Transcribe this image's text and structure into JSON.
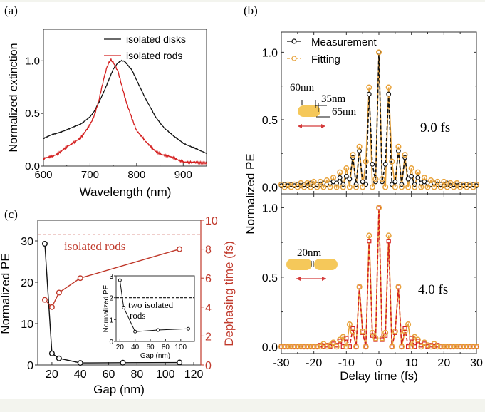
{
  "colors": {
    "black": "#111111",
    "red": "#d42020",
    "dark_red": "#c0392b",
    "orange": "#e8a23a",
    "rod_fill": "#f5c85a",
    "arrow": "#d43a3a"
  },
  "chart_data": [
    {
      "panel": "a",
      "panel_label": "(a)",
      "type": "line",
      "title": "",
      "xlabel": "Wavelength (nm)",
      "ylabel": "Normalized extinction",
      "xlim": [
        600,
        950
      ],
      "ylim": [
        0.0,
        1.3
      ],
      "xticks": [
        600,
        700,
        800,
        900
      ],
      "xtick_labels": [
        "600",
        "700",
        "800",
        "900"
      ],
      "yticks": [
        0.0,
        0.5,
        1.0
      ],
      "ytick_labels": [
        "0.0",
        "0.5",
        "1.0"
      ],
      "legend_position": "top-right",
      "series": [
        {
          "name": "isolated disks",
          "color": "#111111",
          "x": [
            600,
            620,
            640,
            660,
            680,
            700,
            710,
            720,
            730,
            740,
            750,
            760,
            768,
            775,
            790,
            800,
            820,
            840,
            860,
            880,
            900,
            920,
            950
          ],
          "values": [
            0.26,
            0.3,
            0.33,
            0.36,
            0.4,
            0.47,
            0.53,
            0.61,
            0.71,
            0.82,
            0.92,
            0.98,
            1.0,
            0.99,
            0.91,
            0.82,
            0.63,
            0.47,
            0.36,
            0.28,
            0.22,
            0.18,
            0.12
          ]
        },
        {
          "name": "isolated rods",
          "color": "#d42020",
          "x": [
            600,
            620,
            640,
            660,
            680,
            700,
            710,
            720,
            730,
            738,
            745,
            752,
            760,
            770,
            780,
            790,
            800,
            820,
            840,
            860,
            880,
            900,
            920,
            950
          ],
          "values": [
            0.06,
            0.1,
            0.15,
            0.2,
            0.28,
            0.39,
            0.5,
            0.64,
            0.83,
            0.96,
            1.0,
            0.98,
            0.89,
            0.74,
            0.58,
            0.44,
            0.34,
            0.22,
            0.15,
            0.1,
            0.07,
            0.05,
            0.03,
            0.02
          ]
        }
      ]
    },
    {
      "panel": "b-top",
      "panel_label": "(b)",
      "type": "line",
      "xlabel": "Delay time (fs)",
      "ylabel": "Normalized PE",
      "xlim": [
        -30,
        30
      ],
      "ylim": [
        -0.05,
        1.15
      ],
      "yticks": [
        0.0,
        0.5,
        1.0
      ],
      "ytick_labels": [
        "0.0",
        "0.5",
        "1.0"
      ],
      "annotation": "9.0 fs",
      "rod_labels": [
        "60nm",
        "35nm",
        "65nm"
      ],
      "legend_position": "top-left",
      "series": [
        {
          "name": "Measurement",
          "color": "#111111",
          "marker": "circle",
          "x": [
            -30,
            -29,
            -28,
            -27,
            -26,
            -25,
            -24,
            -23,
            -22,
            -21,
            -20,
            -19,
            -18,
            -17,
            -16,
            -15,
            -14,
            -13,
            -12,
            -11,
            -10,
            -9,
            -8,
            -7,
            -6,
            -5,
            -4,
            -3,
            -2,
            -1,
            0,
            1,
            2,
            3,
            4,
            5,
            6,
            7,
            8,
            9,
            10,
            11,
            12,
            13,
            14,
            15,
            16,
            17,
            18,
            19,
            20,
            21,
            22,
            23,
            24,
            25,
            26,
            27,
            28,
            29,
            30
          ],
          "values": [
            0.01,
            0.02,
            0.01,
            0.02,
            0.01,
            0.02,
            0.01,
            0.02,
            0.01,
            0.03,
            0.01,
            0.02,
            0.02,
            0.03,
            0.02,
            0.03,
            0.04,
            0.03,
            0.07,
            0.02,
            0.08,
            0.06,
            0.22,
            0.02,
            0.27,
            0.04,
            0.02,
            0.69,
            0.17,
            0.04,
            1.0,
            0.04,
            0.17,
            0.69,
            0.02,
            0.04,
            0.27,
            0.02,
            0.22,
            0.06,
            0.08,
            0.02,
            0.07,
            0.03,
            0.04,
            0.03,
            0.02,
            0.03,
            0.02,
            0.02,
            0.01,
            0.03,
            0.01,
            0.02,
            0.01,
            0.02,
            0.01,
            0.02,
            0.01,
            0.02,
            0.01
          ]
        },
        {
          "name": "Fitting",
          "color": "#e8a23a",
          "marker": "circle",
          "x": [
            -30,
            -29,
            -28,
            -27,
            -26,
            -25,
            -24,
            -23,
            -22,
            -21,
            -20,
            -19,
            -18,
            -17,
            -16,
            -15,
            -14,
            -13,
            -12,
            -11,
            -10,
            -9,
            -8,
            -7,
            -6,
            -5,
            -4,
            -3,
            -2,
            -1,
            0,
            1,
            2,
            3,
            4,
            5,
            6,
            7,
            8,
            9,
            10,
            11,
            12,
            13,
            14,
            15,
            16,
            17,
            18,
            19,
            20,
            21,
            22,
            23,
            24,
            25,
            26,
            27,
            28,
            29,
            30
          ],
          "values": [
            0.02,
            0.0,
            0.02,
            0.0,
            0.02,
            0.0,
            0.03,
            0.0,
            0.03,
            0.0,
            0.04,
            0.0,
            0.04,
            0.0,
            0.05,
            0.0,
            0.07,
            0.0,
            0.11,
            0.0,
            0.14,
            0.0,
            0.24,
            0.0,
            0.3,
            0.0,
            0.19,
            0.74,
            0.0,
            0.06,
            1.0,
            0.06,
            0.0,
            0.74,
            0.19,
            0.0,
            0.3,
            0.0,
            0.24,
            0.0,
            0.14,
            0.0,
            0.11,
            0.0,
            0.07,
            0.0,
            0.05,
            0.0,
            0.04,
            0.0,
            0.04,
            0.0,
            0.03,
            0.0,
            0.03,
            0.0,
            0.02,
            0.0,
            0.02,
            0.0,
            0.02
          ]
        }
      ]
    },
    {
      "panel": "b-bottom",
      "type": "line",
      "xlabel": "Delay time (fs)",
      "ylabel": "Normalized PE",
      "xlim": [
        -30,
        30
      ],
      "ylim": [
        -0.05,
        1.1
      ],
      "xticks": [
        -30,
        -20,
        -10,
        0,
        10,
        20,
        30
      ],
      "xtick_labels": [
        "-30",
        "-20",
        "-10",
        "0",
        "10",
        "20",
        "30"
      ],
      "yticks": [
        0.0,
        0.5,
        1.0
      ],
      "ytick_labels": [
        "0.0",
        "0.5",
        "1.0"
      ],
      "annotation": "4.0 fs",
      "rod_labels": [
        "20nm"
      ],
      "series": [
        {
          "name": "Measurement",
          "color": "#d42020",
          "marker": "square",
          "x": [
            -30,
            -29,
            -28,
            -27,
            -26,
            -25,
            -24,
            -23,
            -22,
            -21,
            -20,
            -19,
            -18,
            -17,
            -16,
            -15,
            -14,
            -13,
            -12,
            -11,
            -10,
            -9,
            -8,
            -7,
            -6,
            -5,
            -4,
            -3,
            -2,
            -1,
            0,
            1,
            2,
            3,
            4,
            5,
            6,
            7,
            8,
            9,
            10,
            11,
            12,
            13,
            14,
            15,
            16,
            17,
            18,
            19,
            20,
            21,
            22,
            23,
            24,
            25,
            26,
            27,
            28,
            29,
            30
          ],
          "values": [
            0.0,
            0.0,
            0.0,
            0.0,
            0.0,
            0.0,
            0.0,
            0.0,
            0.0,
            0.0,
            0.0,
            0.0,
            0.01,
            0.0,
            0.01,
            0.0,
            0.02,
            0.01,
            0.04,
            0.0,
            0.06,
            0.0,
            0.13,
            0.0,
            0.43,
            0.1,
            0.0,
            0.76,
            0.08,
            0.05,
            1.0,
            0.05,
            0.08,
            0.76,
            0.0,
            0.1,
            0.43,
            0.0,
            0.13,
            0.0,
            0.06,
            0.0,
            0.04,
            0.01,
            0.02,
            0.0,
            0.01,
            0.0,
            0.01,
            0.0,
            0.0,
            0.0,
            0.0,
            0.0,
            0.0,
            0.0,
            0.0,
            0.0,
            0.0,
            0.0,
            0.0
          ]
        },
        {
          "name": "Fitting",
          "color": "#e8a23a",
          "marker": "circle",
          "x": [
            -30,
            -29,
            -28,
            -27,
            -26,
            -25,
            -24,
            -23,
            -22,
            -21,
            -20,
            -19,
            -18,
            -17,
            -16,
            -15,
            -14,
            -13,
            -12,
            -11,
            -10,
            -9,
            -8,
            -7,
            -6,
            -5,
            -4,
            -3,
            -2,
            -1,
            0,
            1,
            2,
            3,
            4,
            5,
            6,
            7,
            8,
            9,
            10,
            11,
            12,
            13,
            14,
            15,
            16,
            17,
            18,
            19,
            20,
            21,
            22,
            23,
            24,
            25,
            26,
            27,
            28,
            29,
            30
          ],
          "values": [
            0.0,
            0.0,
            0.0,
            0.0,
            0.0,
            0.0,
            0.0,
            0.0,
            0.0,
            0.0,
            0.0,
            0.0,
            0.0,
            0.02,
            0.0,
            0.01,
            0.03,
            0.0,
            0.05,
            0.07,
            0.0,
            0.16,
            0.11,
            0.0,
            0.43,
            0.11,
            0.0,
            0.8,
            0.1,
            0.06,
            1.0,
            0.06,
            0.1,
            0.8,
            0.0,
            0.11,
            0.43,
            0.0,
            0.11,
            0.16,
            0.0,
            0.07,
            0.05,
            0.0,
            0.03,
            0.01,
            0.0,
            0.02,
            0.0,
            0.0,
            0.0,
            0.0,
            0.0,
            0.0,
            0.0,
            0.0,
            0.0,
            0.0,
            0.0,
            0.0,
            0.0
          ]
        }
      ]
    },
    {
      "panel": "c",
      "panel_label": "(c)",
      "type": "line",
      "xlabel": "Gap (nm)",
      "ylabel": "Normalized PE",
      "y2label": "Dephasing time (fs)",
      "xlim": [
        10,
        125
      ],
      "ylim": [
        0,
        35
      ],
      "y2lim": [
        0,
        10
      ],
      "xticks": [
        20,
        40,
        60,
        80,
        100,
        120
      ],
      "xtick_labels": [
        "20",
        "40",
        "60",
        "80",
        "100",
        "120"
      ],
      "yticks": [
        0,
        10,
        20,
        30
      ],
      "ytick_labels": [
        "0",
        "10",
        "20",
        "30"
      ],
      "y2ticks": [
        0,
        2,
        4,
        6,
        8,
        10
      ],
      "y2tick_labels": [
        "0",
        "2",
        "4",
        "6",
        "8",
        "10"
      ],
      "reference_line": {
        "label": "isolated rods",
        "y2": 9.0,
        "style": "dashed",
        "color": "#c0392b"
      },
      "series": [
        {
          "name": "Normalized PE",
          "axis": "left",
          "color": "#111111",
          "x": [
            15,
            20,
            25,
            40,
            70,
            110
          ],
          "values": [
            29.3,
            2.8,
            1.6,
            0.5,
            0.55,
            0.6
          ]
        },
        {
          "name": "Dephasing time",
          "axis": "right",
          "color": "#c0392b",
          "x": [
            15,
            20,
            25,
            40,
            110
          ],
          "values": [
            4.5,
            4.0,
            5.0,
            6.0,
            8.0
          ]
        }
      ],
      "inset": {
        "xlabel": "Gap (nm)",
        "ylabel": "Normalized PE",
        "xlim": [
          15,
          118
        ],
        "ylim": [
          0,
          3
        ],
        "xticks": [
          20,
          40,
          60,
          80,
          100
        ],
        "xtick_labels": [
          "20",
          "40",
          "60",
          "80",
          "100"
        ],
        "yticks": [
          0,
          1,
          2,
          3
        ],
        "ytick_labels": [
          "0",
          "1",
          "2",
          "3"
        ],
        "reference_line": {
          "label_line1": "two isolated",
          "label_line2": "rods",
          "y": 2.0,
          "style": "dashed"
        },
        "series": [
          {
            "name": "Normalized PE",
            "color": "#111111",
            "x": [
              20,
              25,
              40,
              70,
              110
            ],
            "values": [
              2.8,
              1.55,
              0.45,
              0.52,
              0.58
            ]
          }
        ]
      }
    }
  ]
}
